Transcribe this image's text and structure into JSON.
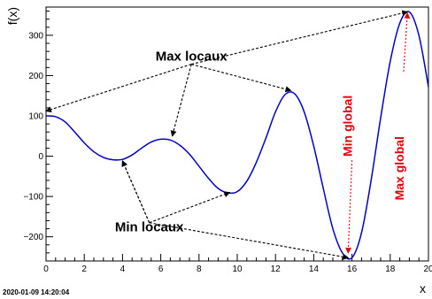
{
  "timestamp": "2020-01-09 14:20:04",
  "chart_data": {
    "type": "line",
    "title": "",
    "xlabel": "x",
    "ylabel": "f(x)",
    "xlim": [
      0,
      20
    ],
    "ylim": [
      -260,
      370
    ],
    "x_ticks": [
      0,
      2,
      4,
      6,
      8,
      10,
      12,
      14,
      16,
      18,
      20
    ],
    "x_tick_labels": [
      "0",
      "2",
      "4",
      "6",
      "8",
      "10",
      "12",
      "14",
      "16",
      "18",
      "20"
    ],
    "y_ticks": [
      -200,
      -100,
      0,
      100,
      200,
      300
    ],
    "y_tick_labels": [
      "−200",
      "−100",
      "0",
      "100",
      "200",
      "300"
    ],
    "grid": false,
    "line_color": "#0000cc",
    "series": [
      {
        "x": [
          0,
          0.5,
          1,
          1.5,
          2,
          2.5,
          3,
          3.5,
          4,
          4.5,
          5,
          5.5,
          6,
          6.5,
          7,
          7.5,
          8,
          8.5,
          9,
          9.5,
          10,
          10.5,
          11,
          11.5,
          12,
          12.5,
          13,
          13.5,
          14,
          14.5,
          15,
          15.5,
          16,
          16.5,
          17,
          17.5,
          18,
          18.5,
          19,
          19.5,
          20
        ],
        "y": [
          100,
          98,
          85,
          60,
          33,
          11,
          -3,
          -9,
          -8,
          3,
          20,
          35,
          42,
          40,
          27,
          5,
          -25,
          -55,
          -80,
          -91,
          -88,
          -62,
          -15,
          45,
          110,
          153,
          155,
          110,
          25,
          -80,
          -180,
          -240,
          -252,
          -190,
          -60,
          95,
          235,
          330,
          358,
          300,
          172
        ]
      }
    ],
    "annotations": {
      "max_label": "Max locaux",
      "min_label": "Min locaux",
      "min_global_label": "Min global",
      "max_global_label": "Max global",
      "max_label_pos": [
        7.6,
        237
      ],
      "min_label_pos": [
        5.4,
        -187
      ],
      "min_global_label_pos": [
        16.0,
        75
      ],
      "max_global_label_pos": [
        18.7,
        -30
      ],
      "max_arrows": {
        "from": [
          [
            7.6,
            237
          ],
          [
            7.6,
            237
          ],
          [
            7.6,
            237
          ],
          [
            7.6,
            237
          ]
        ],
        "to": [
          [
            0,
            112
          ],
          [
            6.6,
            50
          ],
          [
            12.8,
            163
          ],
          [
            18.9,
            358
          ]
        ]
      },
      "min_arrows": {
        "from": [
          [
            5.4,
            -187
          ],
          [
            5.4,
            -187
          ],
          [
            5.4,
            -187
          ],
          [
            5.4,
            -187
          ]
        ],
        "to": [
          [
            4.0,
            -12
          ],
          [
            4.0,
            -12
          ],
          [
            9.6,
            -90
          ],
          [
            15.8,
            -252
          ]
        ]
      },
      "global_arrows": {
        "from": [
          [
            16.0,
            -10
          ],
          [
            18.7,
            210
          ]
        ],
        "to": [
          [
            15.8,
            -240
          ],
          [
            18.9,
            355
          ]
        ]
      },
      "black_color": "#000000",
      "red_color": "#e8000b"
    }
  }
}
